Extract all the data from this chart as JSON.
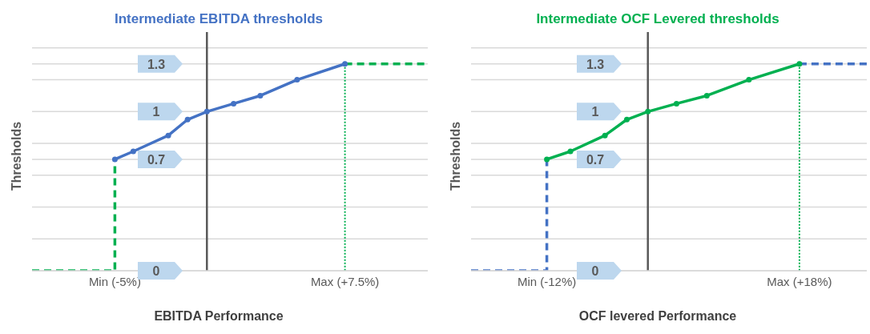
{
  "chart_data": [
    {
      "type": "line",
      "title": "Intermediate EBITDA thresholds",
      "xlabel": "EBITDA Performance",
      "ylabel": "Thresholds",
      "xlim": [
        -9.5,
        12
      ],
      "xticks": [
        {
          "value": -5,
          "label": "Min (-5%)"
        },
        {
          "value": 7.5,
          "label": "Max (+7.5%)"
        }
      ],
      "ylim": [
        0,
        1.5
      ],
      "yticks": [
        0,
        {
          "value": 0.2,
          "label": null
        },
        {
          "value": 0.4,
          "label": null
        },
        {
          "value": 0.6,
          "label": null
        },
        0.7,
        {
          "value": 0.8,
          "label": null
        },
        1,
        {
          "value": 1.2,
          "label": null
        },
        1.3,
        {
          "value": 1.4,
          "label": null
        }
      ],
      "grid": "y",
      "marker": "circle",
      "line_style": "solid",
      "ref_lines": [
        {
          "axis": "x",
          "value": 0,
          "label": null,
          "color": "#595959",
          "line_style": "solid"
        }
      ],
      "series": [
        {
          "color": "#4472c4",
          "x": [
            -5,
            -4,
            -2.1,
            -1.05,
            0,
            1.45,
            2.9,
            4.9,
            7.5
          ],
          "values": [
            0.7,
            0.75,
            0.85,
            0.95,
            1,
            1.05,
            1.1,
            1.2,
            1.3
          ]
        },
        {
          "color": "#00b050",
          "x": [
            -9.5,
            -5,
            -5
          ],
          "values": [
            0,
            0,
            0.7
          ],
          "line_style": "dashed",
          "marker": "none"
        },
        {
          "color": "#00b050",
          "x": [
            7.5,
            12
          ],
          "values": [
            1.3,
            1.3
          ],
          "line_style": "dashed",
          "marker": "none"
        },
        {
          "color": "#00b050",
          "x": [
            7.5,
            7.5
          ],
          "values": [
            1.3,
            0
          ],
          "line_style": "dotted",
          "marker": "none"
        }
      ]
    },
    {
      "type": "line",
      "title": "Intermediate OCF Levered thresholds",
      "xlabel": "OCF levered Performance",
      "ylabel": "Thresholds",
      "xlim": [
        -21,
        26
      ],
      "xticks": [
        {
          "value": -12,
          "label": "Min (-12%)"
        },
        {
          "value": 18,
          "label": "Max (+18%)"
        }
      ],
      "ylim": [
        0,
        1.5
      ],
      "yticks": [
        0,
        {
          "value": 0.2,
          "label": null
        },
        {
          "value": 0.4,
          "label": null
        },
        {
          "value": 0.6,
          "label": null
        },
        0.7,
        {
          "value": 0.8,
          "label": null
        },
        1,
        {
          "value": 1.2,
          "label": null
        },
        1.3,
        {
          "value": 1.4,
          "label": null
        }
      ],
      "grid": "y",
      "marker": "circle",
      "line_style": "solid",
      "ref_lines": [
        {
          "axis": "x",
          "value": 0,
          "label": null,
          "color": "#595959",
          "line_style": "solid"
        }
      ],
      "series": [
        {
          "color": "#00b050",
          "x": [
            -12,
            -9.2,
            -5.1,
            -2.5,
            0,
            3.4,
            7,
            12,
            18
          ],
          "values": [
            0.7,
            0.75,
            0.85,
            0.95,
            1,
            1.05,
            1.1,
            1.2,
            1.3
          ]
        },
        {
          "color": "#4472c4",
          "x": [
            -21,
            -12,
            -12
          ],
          "values": [
            0,
            0,
            0.7
          ],
          "line_style": "dashed",
          "marker": "none"
        },
        {
          "color": "#4472c4",
          "x": [
            18,
            26
          ],
          "values": [
            1.3,
            1.3
          ],
          "line_style": "dashed",
          "marker": "none"
        },
        {
          "color": "#00b050",
          "x": [
            18,
            18
          ],
          "values": [
            1.3,
            0
          ],
          "line_style": "dotted",
          "marker": "none"
        }
      ]
    }
  ]
}
